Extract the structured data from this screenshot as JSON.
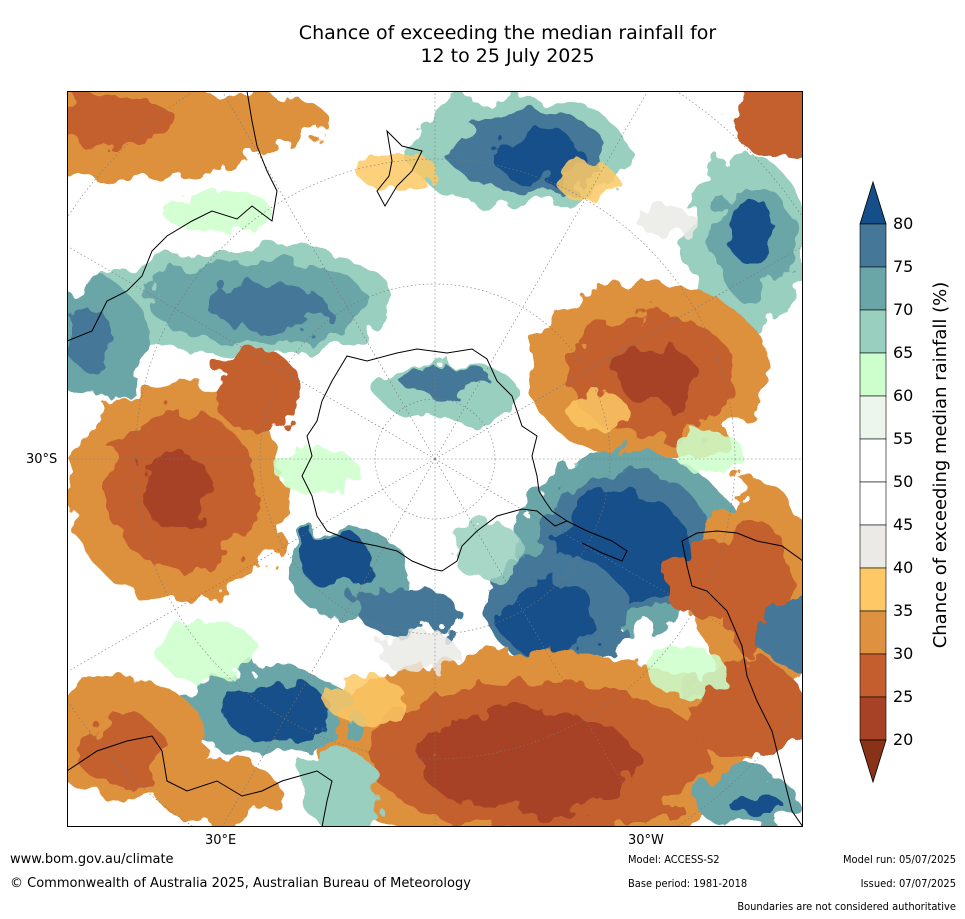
{
  "title": {
    "line1": "Chance of exceeding the median rainfall for",
    "line2": "12 to 25 July 2025"
  },
  "map": {
    "lat_label": "30°S",
    "lon_label_east": "30°E",
    "lon_label_west": "30°W"
  },
  "legend": {
    "title": "Chance of exceeding median rainfall (%)",
    "ticks": [
      "80",
      "75",
      "70",
      "65",
      "60",
      "55",
      "50",
      "45",
      "40",
      "35",
      "30",
      "25",
      "20"
    ],
    "colors": [
      "#154f8a",
      "#457898",
      "#6aa5a8",
      "#99cfbe",
      "#ccffcc",
      "#ecf6ec",
      "#ffffff",
      "#ffffff",
      "#ebeae6",
      "#fdc865",
      "#de913e",
      "#c45e2e",
      "#a84226",
      "#893218"
    ]
  },
  "footer": {
    "url": "www.bom.gov.au/climate",
    "copyright": "© Commonwealth of Australia 2025, Australian Bureau of Meteorology",
    "model": "Model: ACCESS-S2",
    "base_period": "Base period: 1981-2018",
    "model_run": "Model run: 05/07/2025",
    "issued": "Issued: 07/07/2025",
    "disclaimer": "Boundaries are not considered authoritative"
  }
}
